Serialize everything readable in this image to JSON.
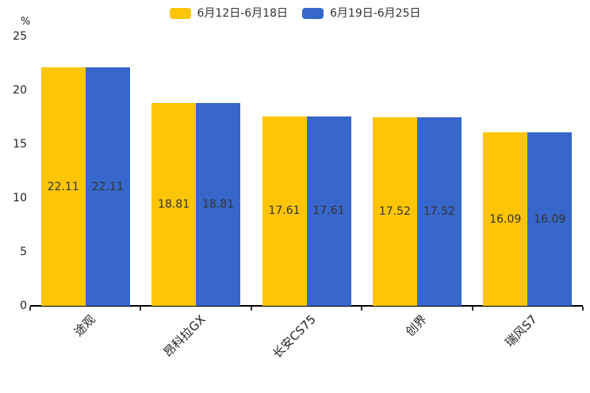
{
  "chart_data": {
    "type": "bar",
    "title": "",
    "categories": [
      "途观",
      "昂科拉GX",
      "长安CS75",
      "创界",
      "瑞风S7"
    ],
    "series": [
      {
        "name": "6月12日-6月18日",
        "color": "#FDC506",
        "values": [
          22.11,
          18.81,
          17.61,
          17.52,
          16.09
        ]
      },
      {
        "name": "6月19日-6月25日",
        "color": "#3767CA",
        "values": [
          22.11,
          18.81,
          17.61,
          17.52,
          16.09
        ]
      }
    ],
    "xlabel": "",
    "ylabel": "%",
    "ylim": [
      0,
      25
    ],
    "yticks": [
      0,
      5,
      10,
      15,
      20,
      25
    ],
    "grid": false,
    "legend_position": "top-center",
    "value_label_position": "inside-middle",
    "value_label_decimals": 2
  },
  "colors": {
    "axis_line": "#000000",
    "tick_mark": "#333333",
    "label_text": "#333333"
  }
}
